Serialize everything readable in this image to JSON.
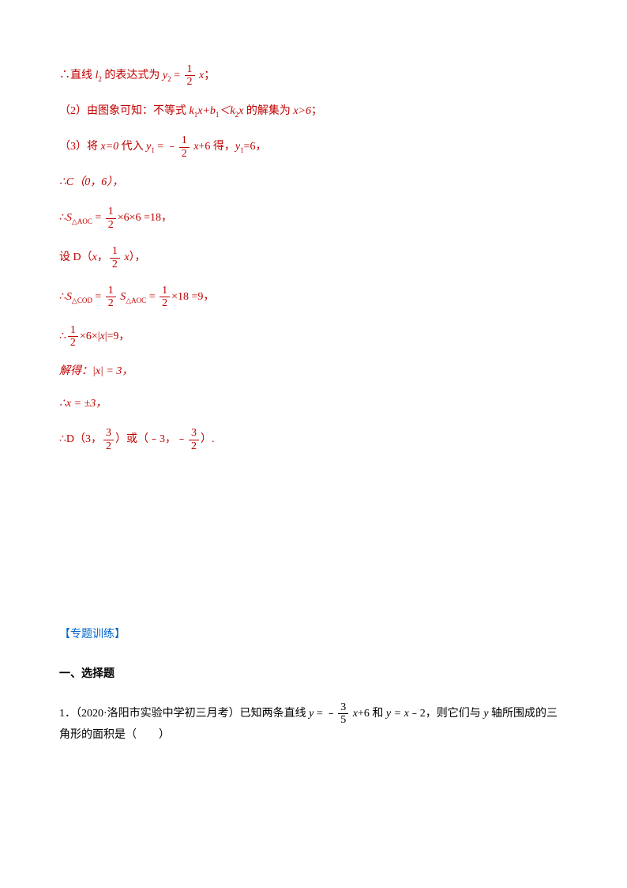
{
  "lines": {
    "l1_a": "∴直线 ",
    "l1_b": " 的表达式为 ",
    "l1_c": "；",
    "l2_a": "（2）由图象可知：不等式 ",
    "l2_b": " 的解集为 ",
    "l2_c": "；",
    "l3_a": "（3）将 ",
    "l3_b": " 代入 ",
    "l3_c": " 得，",
    "l3_d": "，",
    "l4": "∴C（0，6），",
    "l5_a": "∴",
    "l5_b": "×6×6 =18，",
    "l6_a": "设 D（",
    "l6_b": "，",
    "l6_c": "），",
    "l7_a": "∴",
    "l7_b": "×18 =9，",
    "l8_a": "∴",
    "l8_b": "×6×|",
    "l8_c": "|=9，",
    "l9": "解得：|x| = 3，",
    "l10": "∴x = ±3，",
    "l11_a": "∴D（3，",
    "l11_b": "）或（﹣3，﹣",
    "l11_c": "）."
  },
  "vars": {
    "l2": "l",
    "l2sub": "2",
    "y2": "y",
    "y2sub": "2",
    "k1": "k",
    "k1sub": "1",
    "k2": "k",
    "k2sub": "2",
    "b1": "b",
    "b1sub": "1",
    "x": "x",
    "y1": "y",
    "y1sub": "1",
    "S": "S",
    "tri_aoc": "△AOC",
    "tri_cod": "△COD"
  },
  "exprs": {
    "xgt6": "x>6",
    "xeq0": "x=0",
    "plus6": "+6",
    "y1eq6": "=6",
    "half_num": "1",
    "half_den": "2",
    "three_num": "3",
    "three_den": "2",
    "threefifths_num": "3",
    "threefifths_den": "5",
    "eq": " = "
  },
  "training": {
    "title": "【专题训练】",
    "section": "一、选择题",
    "q1_a": "1．（2020·洛阳市实验中学初三月考）已知两条直线 ",
    "q1_b": "+6 和 ",
    "q1_c": "﹣2，则它们与 ",
    "q1_d": " 轴所围成的三角形的面积是（　　）",
    "y": "y",
    "yeqx": " = x"
  },
  "colors": {
    "solution": "#c00000",
    "title": "#0066cc",
    "text": "#000000"
  }
}
